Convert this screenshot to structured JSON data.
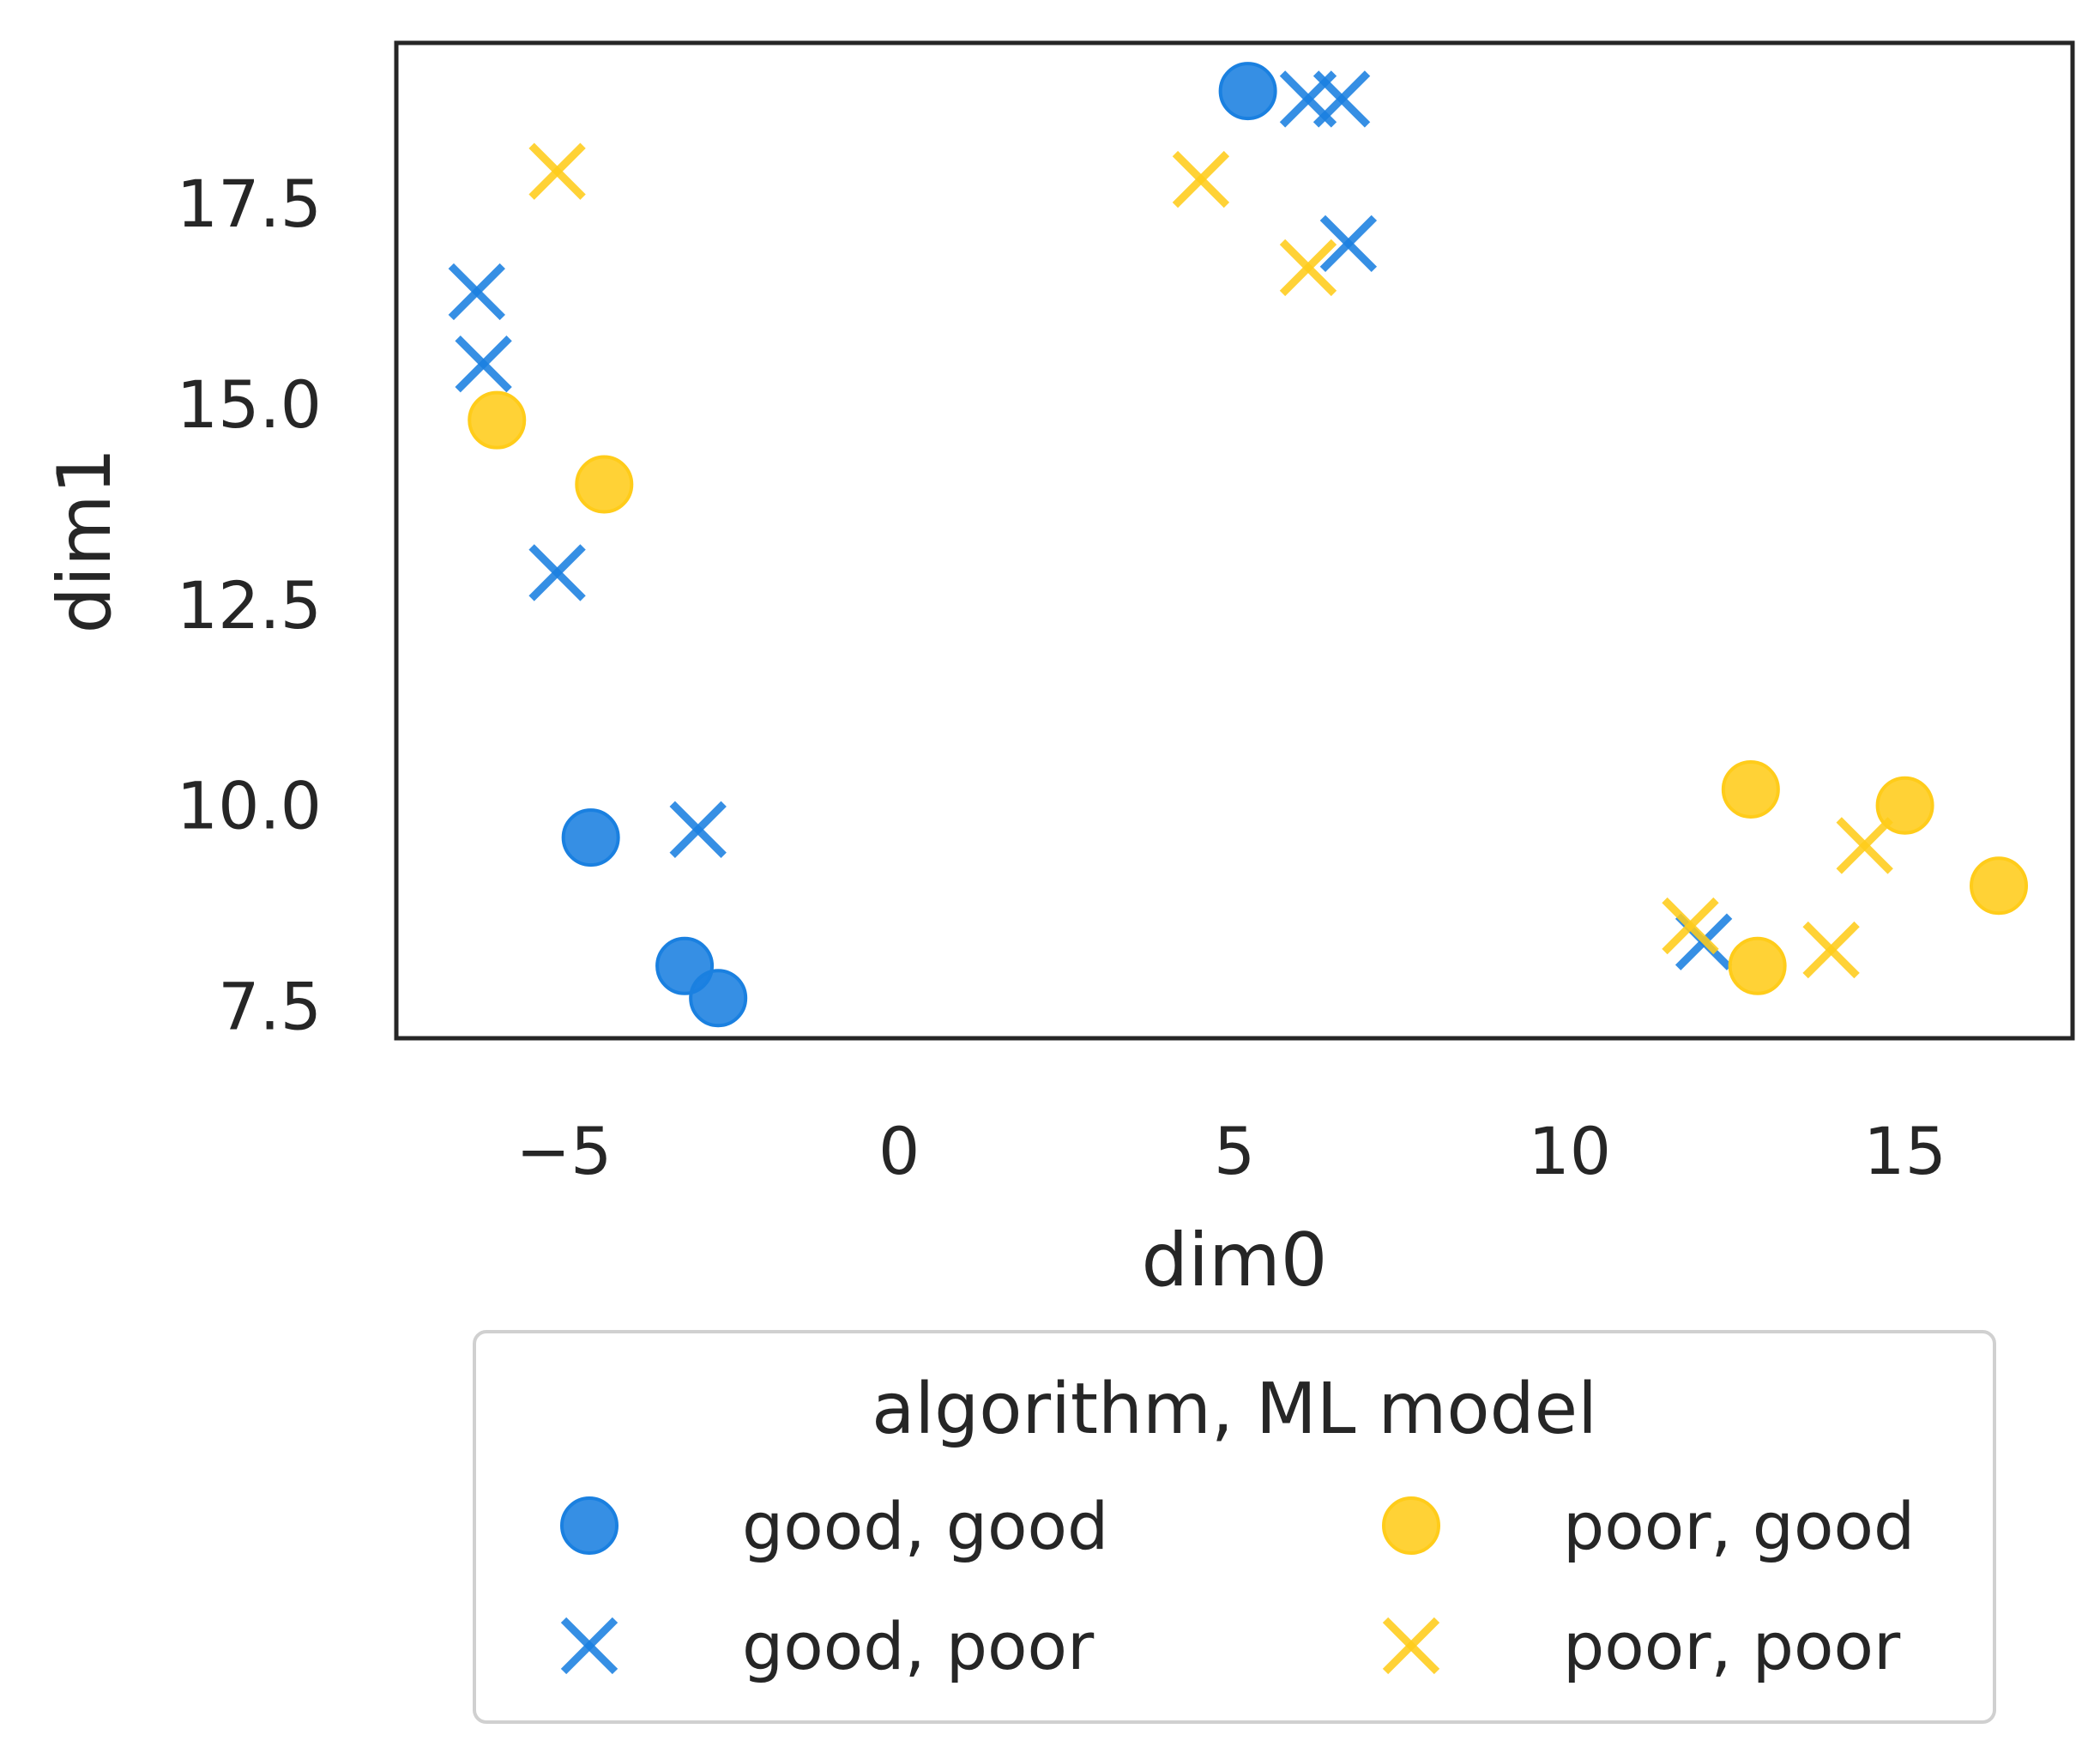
{
  "chart_data": {
    "type": "scatter",
    "title": "",
    "xlabel": "dim0",
    "ylabel": "dim1",
    "xlim": [
      -7.5,
      17.5
    ],
    "ylim": [
      7.1,
      19.5
    ],
    "xticks": [
      -5,
      0,
      5,
      10,
      15
    ],
    "xtick_labels": [
      "−5",
      "0",
      "5",
      "10",
      "15"
    ],
    "yticks": [
      7.5,
      10.0,
      12.5,
      15.0,
      17.5
    ],
    "ytick_labels": [
      "7.5",
      "10.0",
      "12.5",
      "15.0",
      "17.5"
    ],
    "grid": false,
    "legend": {
      "title": "algorithm, ML model",
      "placement": "below",
      "columns": 2
    },
    "series": [
      {
        "name": "good, good",
        "marker": "circle",
        "color": "#1a80e0",
        "points": [
          [
            5.2,
            18.9
          ],
          [
            -4.6,
            9.6
          ],
          [
            -3.2,
            8.0
          ],
          [
            -2.7,
            7.6
          ]
        ]
      },
      {
        "name": "good, poor",
        "marker": "x",
        "color": "#1a80e0",
        "points": [
          [
            -6.3,
            16.4
          ],
          [
            -6.2,
            15.5
          ],
          [
            -5.1,
            12.9
          ],
          [
            -3.0,
            9.7
          ],
          [
            6.1,
            18.8
          ],
          [
            6.6,
            18.8
          ],
          [
            6.7,
            17.0
          ],
          [
            12.0,
            8.3
          ]
        ]
      },
      {
        "name": "poor, good",
        "marker": "circle",
        "color": "#ffcc1a",
        "points": [
          [
            -6.0,
            14.8
          ],
          [
            -4.4,
            14.0
          ],
          [
            12.7,
            10.2
          ],
          [
            15.0,
            10.0
          ],
          [
            16.4,
            9.0
          ],
          [
            12.8,
            8.0
          ]
        ]
      },
      {
        "name": "poor, poor",
        "marker": "x",
        "color": "#ffcc1a",
        "points": [
          [
            -5.1,
            17.9
          ],
          [
            4.5,
            17.8
          ],
          [
            6.1,
            16.7
          ],
          [
            11.8,
            8.5
          ],
          [
            14.4,
            9.5
          ],
          [
            13.9,
            8.2
          ]
        ]
      }
    ]
  }
}
